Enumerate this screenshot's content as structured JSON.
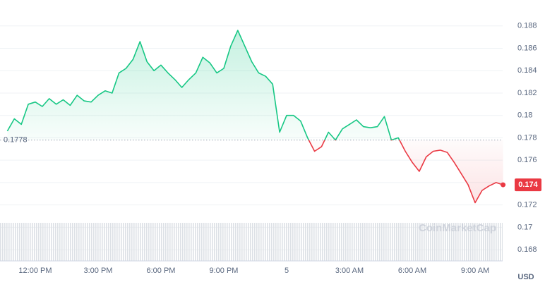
{
  "chart_data": {
    "type": "line",
    "categories": [
      null,
      null,
      null,
      null,
      "12:00 PM",
      null,
      null,
      null,
      null,
      null,
      null,
      null,
      null,
      "3:00 PM",
      null,
      null,
      null,
      null,
      null,
      null,
      null,
      null,
      "6:00 PM",
      null,
      null,
      null,
      null,
      null,
      null,
      null,
      null,
      "9:00 PM",
      null,
      null,
      null,
      null,
      null,
      null,
      null,
      null,
      "5",
      null,
      null,
      null,
      null,
      null,
      null,
      null,
      null,
      "3:00 AM",
      null,
      null,
      null,
      null,
      null,
      null,
      null,
      null,
      "6:00 AM",
      null,
      null,
      null,
      null,
      null,
      null,
      null,
      null,
      "9:00 AM",
      null,
      null,
      null,
      null
    ],
    "values": [
      0.1786,
      0.1797,
      0.1792,
      0.181,
      0.1812,
      0.1808,
      0.1815,
      0.181,
      0.1814,
      0.1809,
      0.1818,
      0.1813,
      0.1812,
      0.1818,
      0.1822,
      0.182,
      0.1838,
      0.1842,
      0.185,
      0.1866,
      0.1848,
      0.184,
      0.1845,
      0.1838,
      0.1832,
      0.1825,
      0.1832,
      0.1838,
      0.1852,
      0.1847,
      0.1838,
      0.1842,
      0.1862,
      0.1876,
      0.1862,
      0.1848,
      0.1838,
      0.1835,
      0.1828,
      0.1785,
      0.18,
      0.18,
      0.1795,
      0.178,
      0.1768,
      0.1772,
      0.1785,
      0.1778,
      0.1788,
      0.1792,
      0.1796,
      0.179,
      0.1789,
      0.179,
      0.1799,
      0.1778,
      0.178,
      0.1768,
      0.1758,
      0.175,
      0.1763,
      0.1768,
      0.1769,
      0.1767,
      0.1758,
      0.1748,
      0.1738,
      0.1722,
      0.1733,
      0.1737,
      0.174,
      0.1738
    ],
    "baseline": 0.1778,
    "last_value_label": "0.174",
    "color_up": "#16c784",
    "color_down": "#ea3943",
    "ylim": [
      0.167,
      0.19
    ],
    "yticks": [
      0.168,
      0.17,
      0.172,
      0.174,
      0.176,
      0.178,
      0.18,
      0.182,
      0.184,
      0.186,
      0.188
    ],
    "grid": true,
    "currency": "USD",
    "watermark": "CoinMarketCap"
  }
}
